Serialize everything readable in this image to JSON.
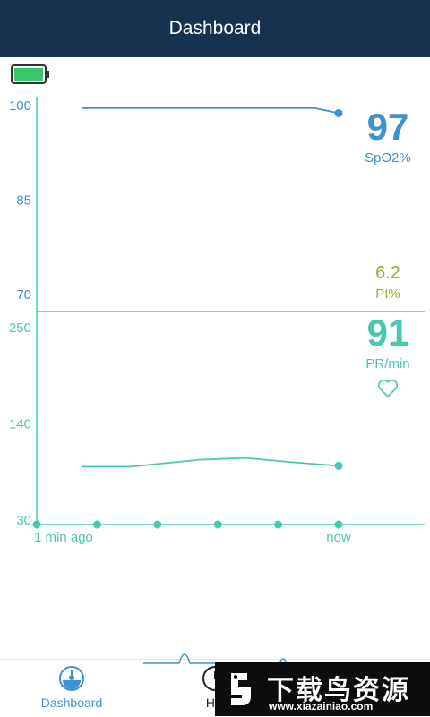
{
  "header": {
    "title": "Dashboard"
  },
  "status": {
    "battery_color": "#35c76a"
  },
  "readouts": {
    "spo2": {
      "value": "97",
      "label": "SpO2%",
      "color": "#3d93cf"
    },
    "pi": {
      "value": "6.2",
      "label": "PI%",
      "color": "#93b12a"
    },
    "pr": {
      "value": "91",
      "label": "PR/min",
      "color": "#46c9b0"
    }
  },
  "chart_data": [
    {
      "type": "line",
      "title": "",
      "xlabel": "",
      "ylabel": "",
      "y_ticks": [
        "100",
        "85",
        "70"
      ],
      "ylim": [
        70,
        100
      ],
      "series": [
        {
          "points": [
            [
              -0.85,
              99.6
            ],
            [
              -0.56,
              99.6
            ],
            [
              -0.08,
              99.6
            ],
            [
              0,
              98.8
            ]
          ]
        }
      ],
      "grid": false
    },
    {
      "type": "line",
      "title": "",
      "xlabel": "",
      "ylabel": "",
      "y_ticks": [
        "250",
        "140",
        "30"
      ],
      "ylim": [
        30,
        250
      ],
      "x_tick_labels": [
        "1 min ago",
        "now"
      ],
      "series": [
        {
          "points": [
            [
              -0.85,
              91
            ],
            [
              -0.69,
              91
            ],
            [
              -0.46,
              99
            ],
            [
              -0.31,
              101
            ],
            [
              -0.15,
              96
            ],
            [
              0,
              92
            ]
          ]
        }
      ],
      "grid": false
    }
  ],
  "tabs": [
    {
      "label": "Dashboard",
      "active": true
    },
    {
      "label": "His"
    }
  ],
  "watermark": {
    "title": "下载鸟资源",
    "url": "www.xiazainiao.com"
  }
}
